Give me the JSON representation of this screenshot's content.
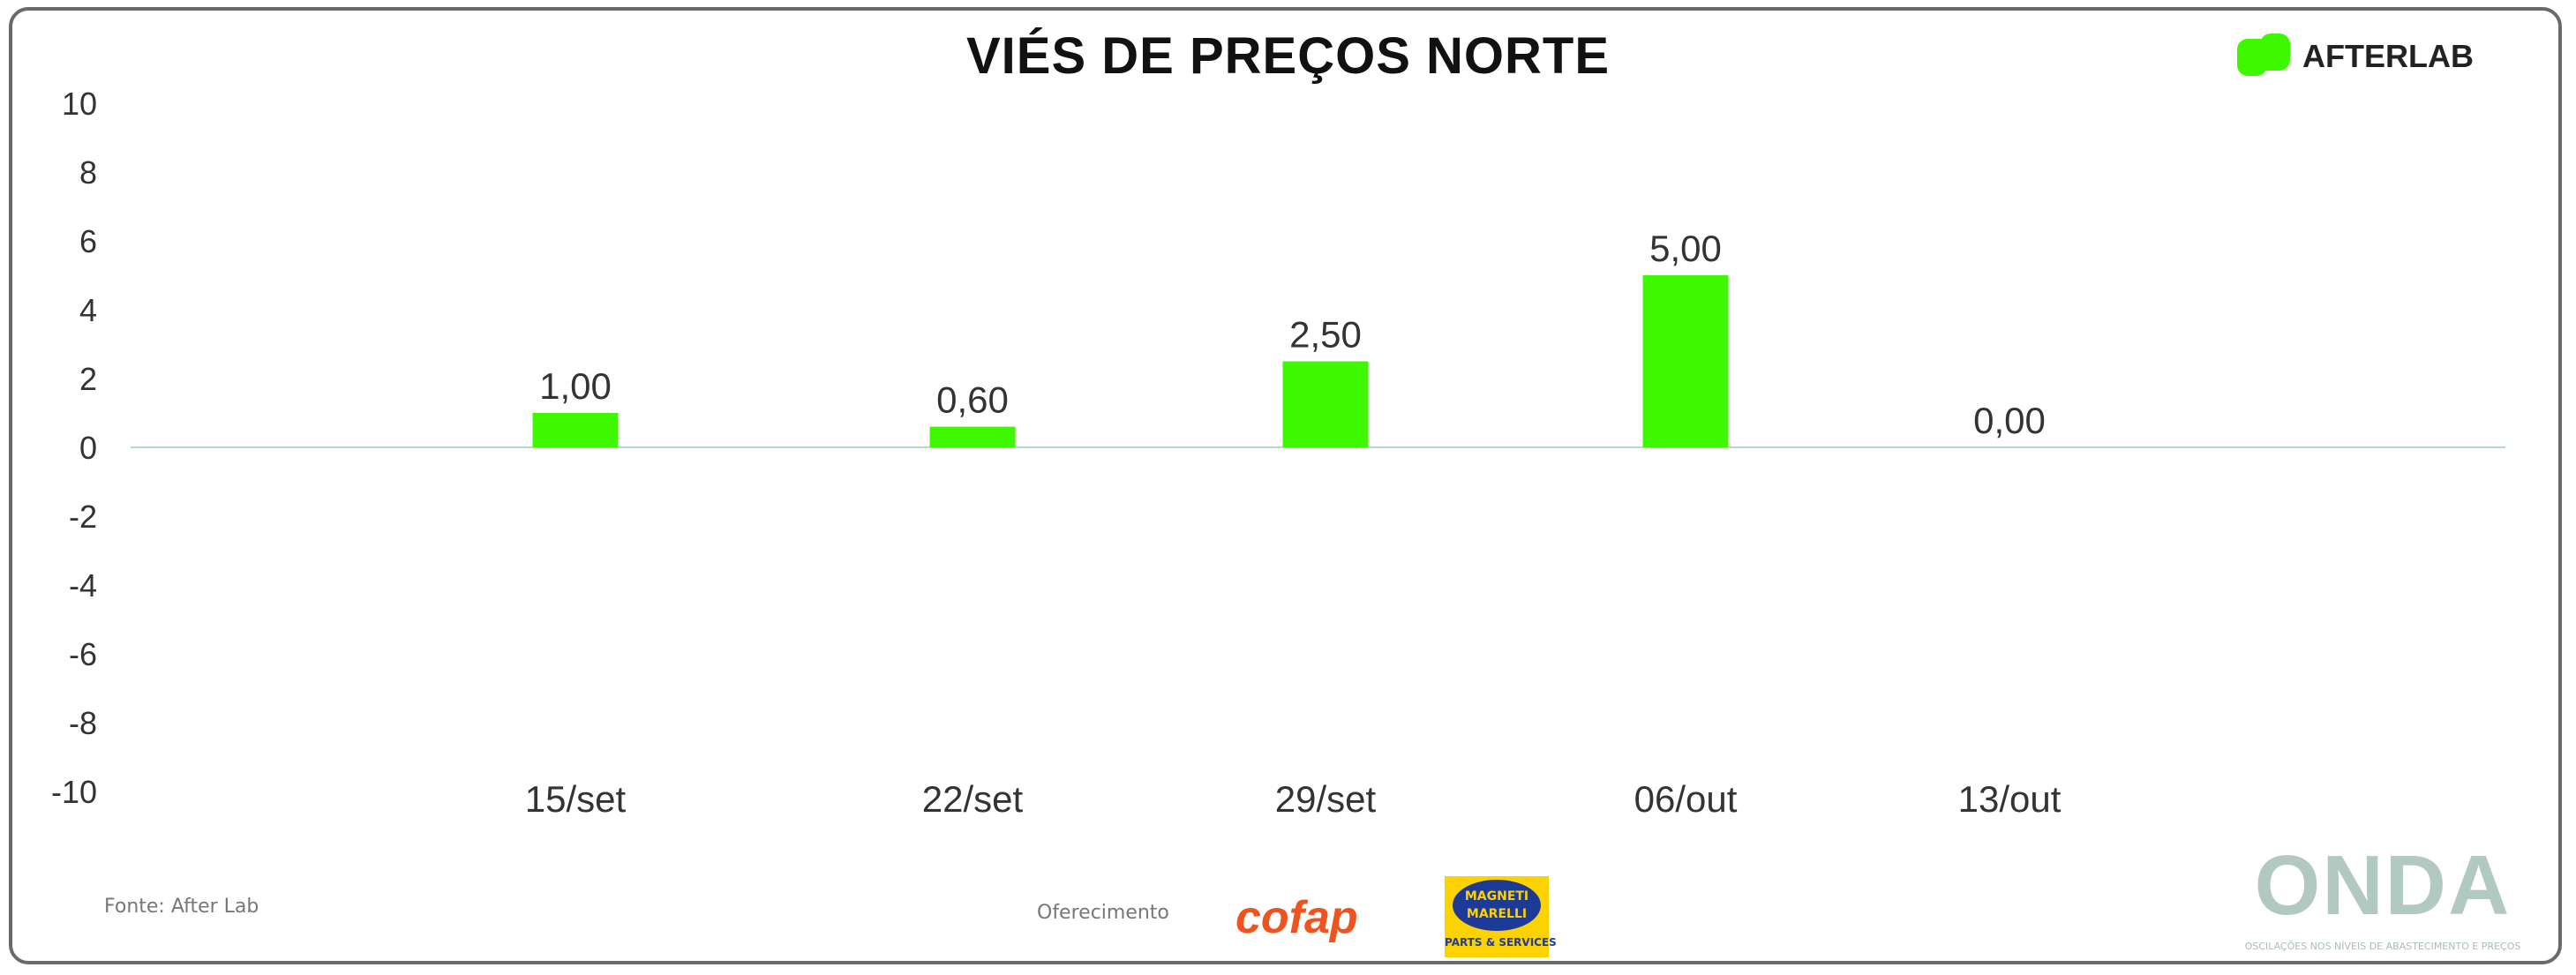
{
  "title": "VIÉS DE PREÇOS NORTE",
  "brand": {
    "logo_text": "AFTERLAB",
    "accent": "#3ef800"
  },
  "footer": {
    "source": "Fonte: After Lab",
    "offer": "Oferecimento",
    "sponsor1": "cofap",
    "sponsor2_line1": "MAGNETI",
    "sponsor2_line2": "MARELLI",
    "sponsor2_sub": "PARTS & SERVICES",
    "onda": "ONDA",
    "onda_sub": "OSCILAÇÕES NOS NÍVEIS DE ABASTECIMENTO E PREÇOS"
  },
  "chart_data": {
    "type": "bar",
    "title": "VIÉS DE PREÇOS NORTE",
    "categories": [
      "15/set",
      "22/set",
      "29/set",
      "06/out",
      "13/out"
    ],
    "values": [
      1.0,
      0.6,
      2.5,
      5.0,
      0.0
    ],
    "data_labels": [
      "1,00",
      "0,60",
      "2,50",
      "5,00",
      "0,00"
    ],
    "ylim": [
      -10,
      10
    ],
    "yticks": [
      -10,
      -8,
      -6,
      -4,
      -2,
      0,
      2,
      4,
      6,
      8,
      10
    ],
    "bar_color": "#3ef800",
    "zero_line_color": "#b9d6cf",
    "grid": false,
    "xlabel": "",
    "ylabel": ""
  }
}
